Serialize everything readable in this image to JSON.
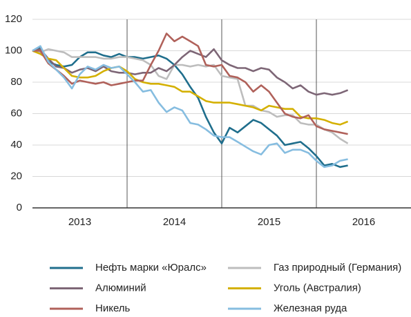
{
  "chart_data": {
    "type": "line",
    "categories": [
      "2013",
      "2014",
      "2015",
      "2016"
    ],
    "x": [
      2013.0,
      2013.083,
      2013.167,
      2013.25,
      2013.333,
      2013.417,
      2013.5,
      2013.583,
      2013.667,
      2013.75,
      2013.833,
      2013.917,
      2014.0,
      2014.083,
      2014.167,
      2014.25,
      2014.333,
      2014.417,
      2014.5,
      2014.583,
      2014.667,
      2014.75,
      2014.833,
      2014.917,
      2015.0,
      2015.083,
      2015.167,
      2015.25,
      2015.333,
      2015.417,
      2015.5,
      2015.583,
      2015.667,
      2015.75,
      2015.833,
      2015.917,
      2016.0,
      2016.083,
      2016.167,
      2016.25,
      2016.333
    ],
    "xlim": [
      2013,
      2017
    ],
    "xticks": [
      2014,
      2015,
      2016
    ],
    "ylim": [
      0,
      120
    ],
    "yticks": [
      0,
      20,
      40,
      60,
      80,
      100,
      120
    ],
    "grid": true,
    "series": [
      {
        "name": "Нефть марки «Юралс»",
        "color": "#1f6e8c",
        "values": [
          100,
          102,
          93,
          91,
          90,
          91,
          96,
          99,
          99,
          97,
          96,
          98,
          96,
          96,
          95,
          96,
          97,
          95,
          91,
          85,
          77,
          70,
          58,
          48,
          41,
          51,
          48,
          52,
          56,
          54,
          50,
          46,
          40,
          41,
          42,
          38,
          33,
          27,
          28,
          26,
          27
        ]
      },
      {
        "name": "Газ природный (Германия)",
        "color": "#bdbdbd",
        "values": [
          100,
          99,
          101,
          100,
          99,
          96,
          96,
          96,
          96,
          95,
          95,
          96,
          96,
          95,
          94,
          91,
          84,
          82,
          91,
          91,
          90,
          91,
          90,
          91,
          84,
          83,
          82,
          65,
          65,
          62,
          61,
          58,
          59,
          59,
          54,
          53,
          53,
          50,
          48,
          44,
          41
        ]
      },
      {
        "name": "Алюминий",
        "color": "#7d6676",
        "values": [
          100,
          101,
          95,
          90,
          89,
          86,
          88,
          89,
          87,
          90,
          87,
          86,
          86,
          85,
          86,
          86,
          89,
          87,
          91,
          96,
          100,
          98,
          96,
          101,
          94,
          91,
          89,
          89,
          87,
          89,
          88,
          83,
          80,
          76,
          78,
          74,
          72,
          73,
          72,
          73,
          75
        ]
      },
      {
        "name": "Уголь (Австралия)",
        "color": "#d4b000",
        "values": [
          100,
          98,
          95,
          94,
          89,
          84,
          83,
          83,
          84,
          87,
          89,
          90,
          87,
          82,
          80,
          79,
          79,
          78,
          77,
          74,
          74,
          71,
          68,
          67,
          67,
          67,
          66,
          65,
          64,
          62,
          65,
          64,
          63,
          63,
          58,
          57,
          57,
          56,
          54,
          53,
          55
        ]
      },
      {
        "name": "Никель",
        "color": "#b0615a",
        "values": [
          100,
          100,
          92,
          88,
          84,
          79,
          81,
          80,
          79,
          80,
          78,
          79,
          80,
          81,
          81,
          91,
          100,
          111,
          106,
          109,
          106,
          103,
          91,
          90,
          91,
          84,
          83,
          80,
          74,
          78,
          74,
          67,
          60,
          58,
          57,
          59,
          52,
          50,
          49,
          48,
          47
        ]
      },
      {
        "name": "Железная руда",
        "color": "#86bde0",
        "values": [
          100,
          103,
          93,
          88,
          83,
          76,
          85,
          90,
          88,
          91,
          89,
          90,
          85,
          80,
          74,
          75,
          67,
          61,
          64,
          62,
          54,
          53,
          50,
          46,
          45,
          45,
          42,
          39,
          36,
          34,
          40,
          41,
          35,
          37,
          37,
          35,
          30,
          26,
          27,
          30,
          31
        ]
      }
    ]
  }
}
